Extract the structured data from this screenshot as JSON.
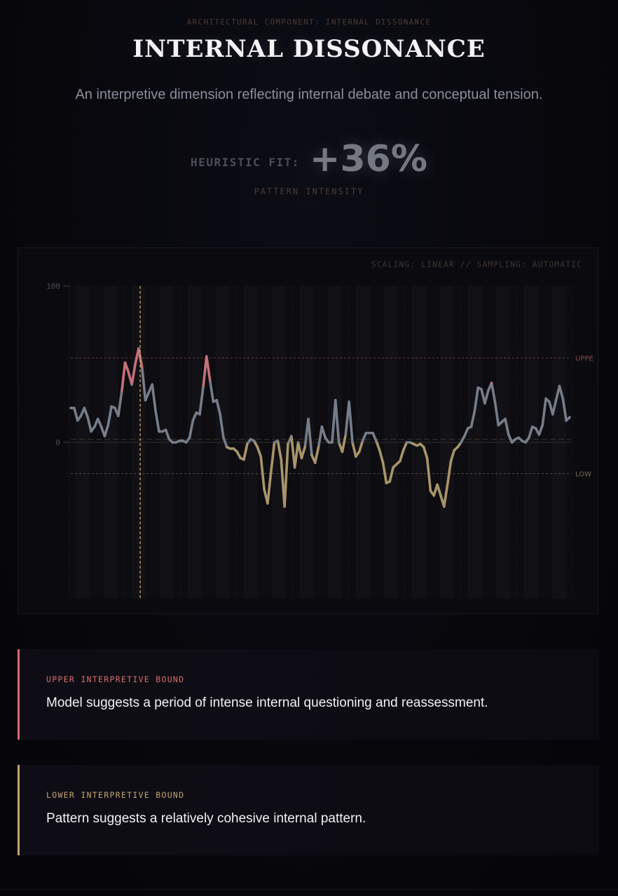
{
  "header": {
    "kicker": "ARCHITECTURAL COMPONENT: INTERNAL DISSONANCE",
    "title": "INTERNAL DISSONANCE",
    "subtitle": "An interpretive dimension reflecting internal debate and conceptual tension."
  },
  "metric": {
    "label": "HEURISTIC FIT:",
    "value": "+36%",
    "caption": "PATTERN INTENSITY"
  },
  "chart": {
    "meta": "SCALING: LINEAR // SAMPLING: AUTOMATIC",
    "colors": {
      "neutral": "#767d89",
      "upper": "#c5707a",
      "lower": "#a89469",
      "upper_rule": "#6d3538",
      "lower_rule": "#5d4a3c",
      "cursor": "#d8b36a"
    }
  },
  "chart_data": {
    "type": "line",
    "ylim": [
      -100,
      100
    ],
    "yticks": [
      "100",
      "0"
    ],
    "thresholds": {
      "upper": {
        "label": "UPPE",
        "value": 54
      },
      "lower": {
        "label": "LOW",
        "value": -20
      }
    },
    "baseline": 1,
    "cursor_index": 19,
    "series": [
      {
        "values": [
          22,
          22,
          14,
          17,
          22,
          16,
          7,
          10,
          15,
          10,
          4,
          11,
          23,
          22,
          17,
          32,
          51,
          45,
          37,
          50,
          60,
          48,
          27,
          32,
          37,
          20,
          7,
          7,
          8,
          2,
          0,
          0,
          1,
          1,
          0,
          3,
          14,
          19,
          18,
          35,
          55,
          40,
          26,
          27,
          18,
          3,
          -3,
          -4,
          -4,
          -6,
          -10,
          -11,
          -1,
          2,
          1,
          -3,
          -9,
          -30,
          -39,
          -19,
          0,
          1,
          -11,
          -41,
          -1,
          4,
          -16,
          0,
          -10,
          -3,
          15,
          -8,
          -13,
          -3,
          10,
          3,
          0,
          0,
          27,
          0,
          -6,
          5,
          26,
          0,
          -9,
          -6,
          1,
          6,
          6,
          6,
          1,
          -5,
          -13,
          -26,
          -25,
          -16,
          -14,
          -12,
          -5,
          0,
          0,
          -1,
          -2,
          -1,
          -3,
          -10,
          -31,
          -34,
          -27,
          -34,
          -41,
          -27,
          -12,
          -5,
          -3,
          0,
          4,
          9,
          10,
          20,
          35,
          34,
          25,
          33,
          38,
          26,
          11,
          13,
          15,
          5,
          0,
          2,
          3,
          1,
          0,
          3,
          10,
          9,
          5,
          11,
          28,
          26,
          18,
          27,
          36,
          28,
          14,
          16
        ]
      }
    ]
  },
  "cards": {
    "upper": {
      "label": "UPPER INTERPRETIVE BOUND",
      "text": "Model suggests a period of intense internal questioning and reassessment."
    },
    "lower": {
      "label": "LOWER INTERPRETIVE BOUND",
      "text": "Pattern suggests a relatively cohesive internal pattern."
    }
  }
}
